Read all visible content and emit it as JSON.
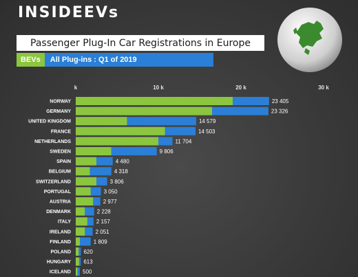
{
  "brand": {
    "logo_text": "INSIDEEVs"
  },
  "title": "Passenger Plug-In Car Registrations in Europe",
  "legend": {
    "bev_label": "BEVs",
    "plugins_label": "All Plug-ins : Q1 of 2019"
  },
  "colors": {
    "bev": "#8cc63f",
    "plugins": "#2b7fd6",
    "background": "#3a3a3a"
  },
  "chart_data": {
    "type": "bar",
    "orientation": "horizontal",
    "title": "Passenger Plug-In Car Registrations in Europe",
    "subtitle": "All Plug-ins : Q1 of 2019",
    "x_ticks": [
      "k",
      "10 k",
      "20 k",
      "30 k"
    ],
    "xlim": [
      0,
      30000
    ],
    "grid": false,
    "legend_placement": "top-left",
    "categories": [
      "NORWAY",
      "GERMANY",
      "UNITED KINGDOM",
      "FRANCE",
      "NETHERLANDS",
      "SWEDEN",
      "SPAIN",
      "BELGIUM",
      "SWITZERLAND",
      "PORTUGAL",
      "AUSTRIA",
      "DENMARK",
      "ITALY",
      "IRELAND",
      "FINLAND",
      "POLAND",
      "HUNGARY",
      "ICELAND"
    ],
    "series": [
      {
        "name": "BEVs",
        "values": [
          19000,
          16500,
          6200,
          10800,
          10000,
          4300,
          2500,
          1700,
          2500,
          1800,
          2100,
          1100,
          1400,
          1100,
          500,
          350,
          400,
          200
        ]
      },
      {
        "name": "All Plug-ins : Q1 of 2019",
        "values": [
          23405,
          23326,
          14579,
          14503,
          11704,
          9806,
          4480,
          4318,
          3806,
          3050,
          2977,
          2228,
          2157,
          2051,
          1809,
          620,
          613,
          500
        ]
      }
    ],
    "value_labels": [
      "23 405",
      "23 326",
      "14 579",
      "14 503",
      "11 704",
      "9 806",
      "4 480",
      "4 318",
      "3 806",
      "3 050",
      "2 977",
      "2 228",
      "2 157",
      "2 051",
      "1 809",
      "620",
      "613",
      "500"
    ]
  }
}
